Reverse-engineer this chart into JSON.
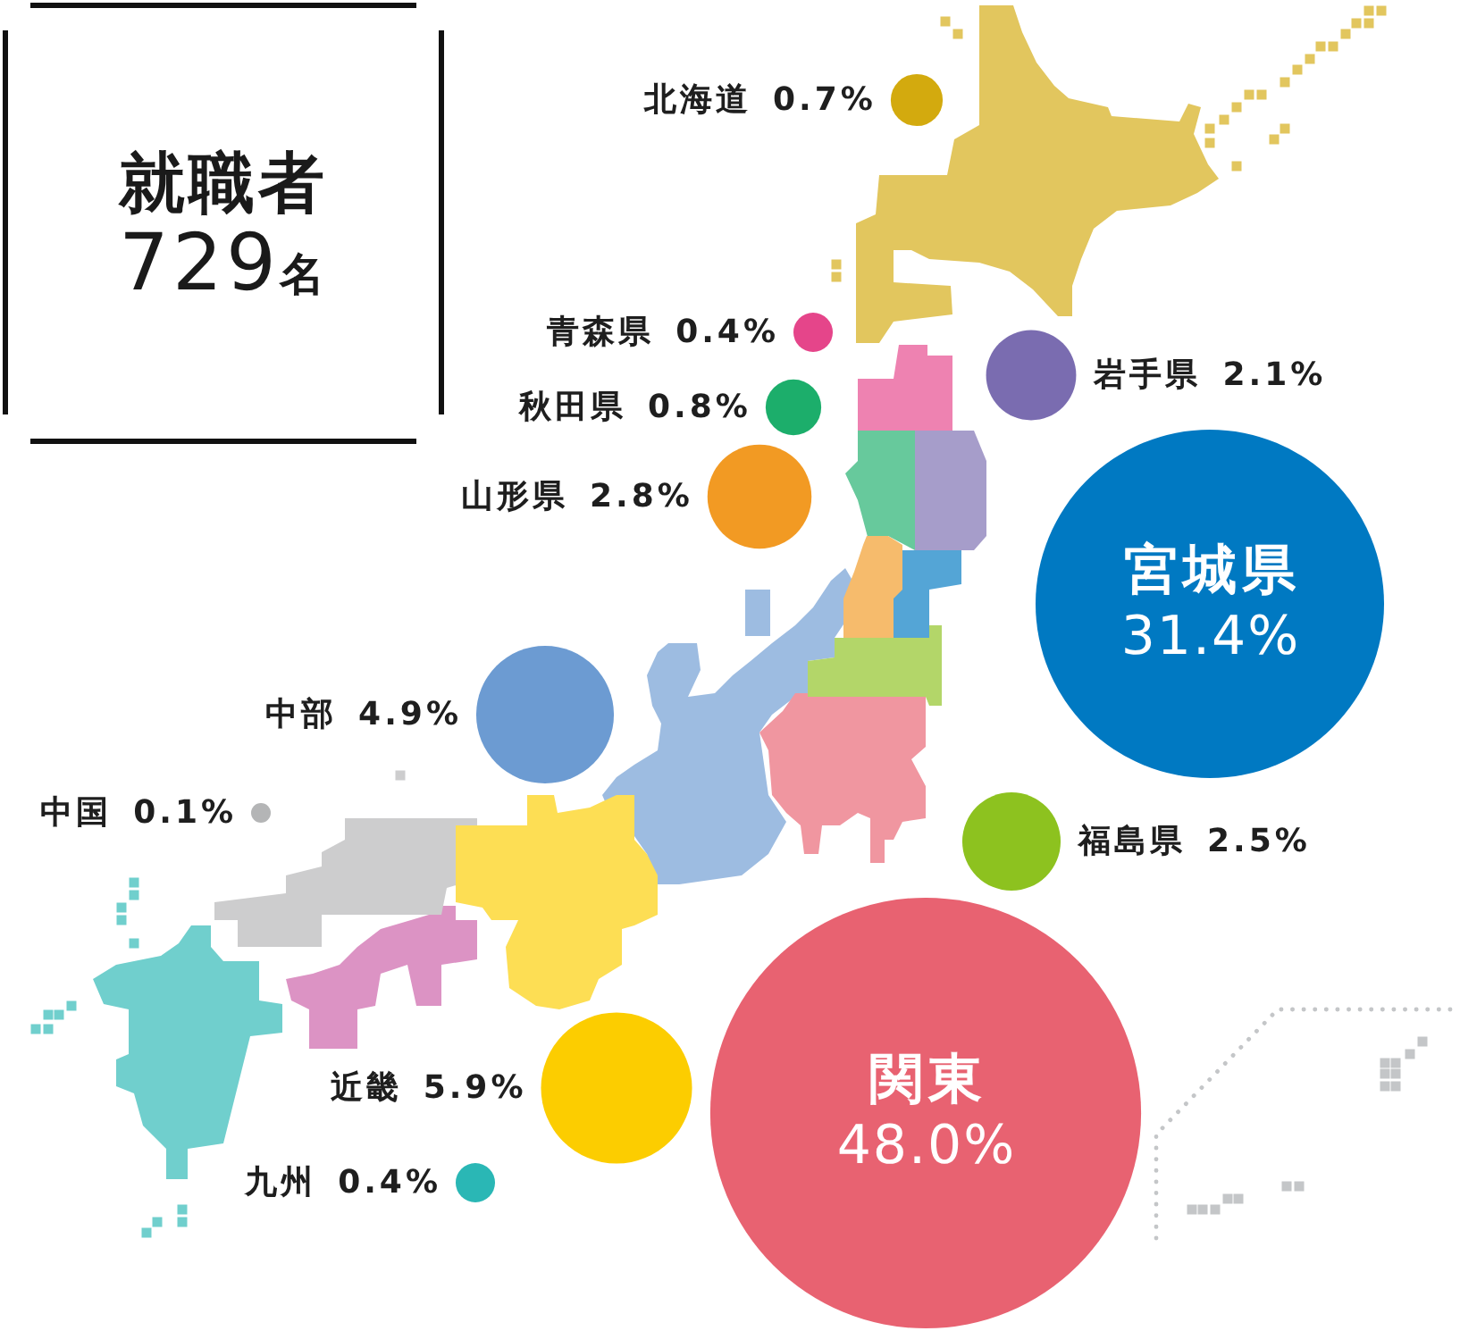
{
  "chart_data": {
    "type": "other",
    "title": "就職者",
    "subtitle": "729名",
    "categories": [
      "北海道",
      "青森県",
      "岩手県",
      "秋田県",
      "山形県",
      "宮城県",
      "福島県",
      "関東",
      "中部",
      "近畿",
      "中国",
      "九州"
    ],
    "values": [
      0.7,
      0.4,
      2.1,
      0.8,
      2.8,
      31.4,
      2.5,
      48.0,
      4.9,
      5.9,
      0.1,
      0.4
    ],
    "value_labels": [
      "0.7%",
      "0.4%",
      "2.1%",
      "0.8%",
      "2.8%",
      "31.4%",
      "2.5%",
      "48.0%",
      "4.9%",
      "5.9%",
      "0.1%",
      "0.4%"
    ],
    "colors": [
      "#d3aa0e",
      "#e5458a",
      "#7a6cb0",
      "#1cae6b",
      "#f29a23",
      "#0079c2",
      "#8dc21f",
      "#e86271",
      "#6c9bd2",
      "#fccd00",
      "#b4b5b6",
      "#2ab7b5"
    ]
  }
}
